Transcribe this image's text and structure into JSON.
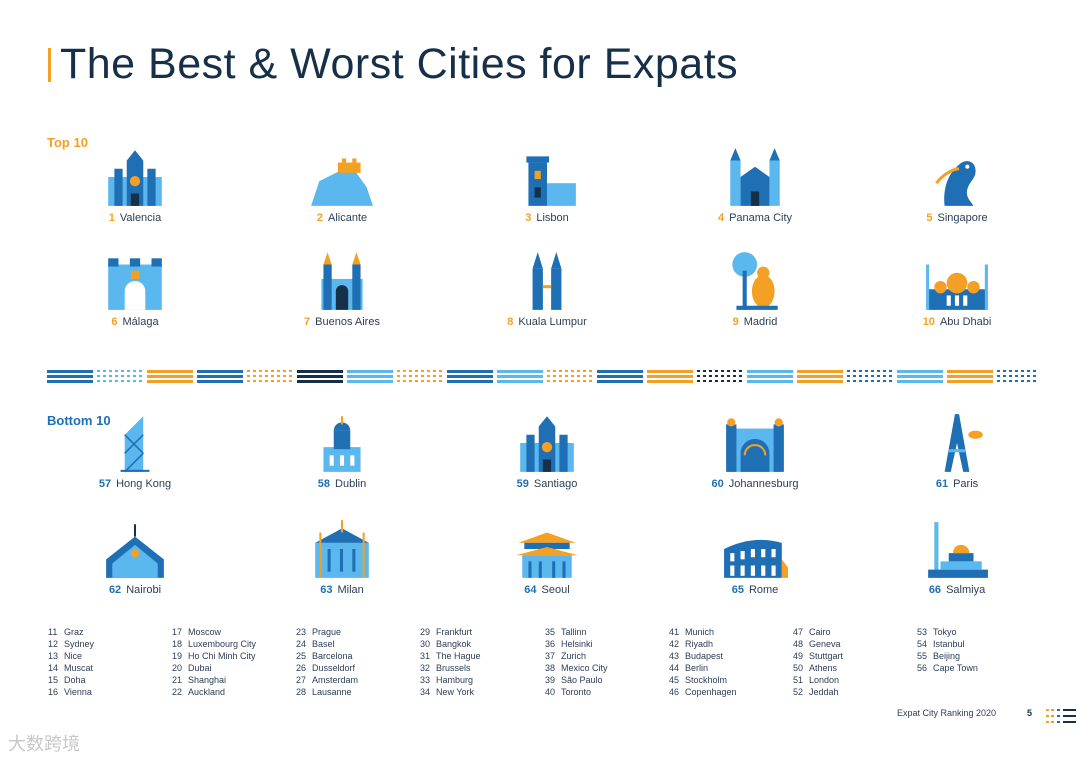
{
  "title": "The Best & Worst Cities for Expats",
  "top_label": "Top 10",
  "bottom_label": "Bottom 10",
  "top10": [
    {
      "rank": "1",
      "city": "Valencia",
      "icon": "cathedral-icon"
    },
    {
      "rank": "2",
      "city": "Alicante",
      "icon": "castle-on-hill-icon"
    },
    {
      "rank": "3",
      "city": "Lisbon",
      "icon": "belem-tower-icon"
    },
    {
      "rank": "4",
      "city": "Panama City",
      "icon": "church-towers-icon"
    },
    {
      "rank": "5",
      "city": "Singapore",
      "icon": "merlion-icon"
    },
    {
      "rank": "6",
      "city": "Málaga",
      "icon": "fortress-gate-icon"
    },
    {
      "rank": "7",
      "city": "Buenos Aires",
      "icon": "gothic-cathedral-icon"
    },
    {
      "rank": "8",
      "city": "Kuala Lumpur",
      "icon": "petronas-towers-icon"
    },
    {
      "rank": "9",
      "city": "Madrid",
      "icon": "bear-and-tree-icon"
    },
    {
      "rank": "10",
      "city": "Abu Dhabi",
      "icon": "grand-mosque-icon"
    }
  ],
  "bottom10": [
    {
      "rank": "57",
      "city": "Hong Kong",
      "icon": "skyscraper-icon"
    },
    {
      "rank": "58",
      "city": "Dublin",
      "icon": "domed-building-icon"
    },
    {
      "rank": "59",
      "city": "Santiago",
      "icon": "cathedral-icon"
    },
    {
      "rank": "60",
      "city": "Johannesburg",
      "icon": "arched-hall-icon"
    },
    {
      "rank": "61",
      "city": "Paris",
      "icon": "eiffel-tower-icon"
    },
    {
      "rank": "62",
      "city": "Nairobi",
      "icon": "conference-centre-icon"
    },
    {
      "rank": "63",
      "city": "Milan",
      "icon": "duomo-icon"
    },
    {
      "rank": "64",
      "city": "Seoul",
      "icon": "pagoda-gate-icon"
    },
    {
      "rank": "65",
      "city": "Rome",
      "icon": "colosseum-icon"
    },
    {
      "rank": "66",
      "city": "Salmiya",
      "icon": "mosque-minaret-icon"
    }
  ],
  "ranking_columns": [
    [
      [
        "11",
        "Graz"
      ],
      [
        "12",
        "Sydney"
      ],
      [
        "13",
        "Nice"
      ],
      [
        "14",
        "Muscat"
      ],
      [
        "15",
        "Doha"
      ],
      [
        "16",
        "Vienna"
      ]
    ],
    [
      [
        "17",
        "Moscow"
      ],
      [
        "18",
        "Luxembourg City"
      ],
      [
        "19",
        "Ho Chi Minh City"
      ],
      [
        "20",
        "Dubai"
      ],
      [
        "21",
        "Shanghai"
      ],
      [
        "22",
        "Auckland"
      ]
    ],
    [
      [
        "23",
        "Prague"
      ],
      [
        "24",
        "Basel"
      ],
      [
        "25",
        "Barcelona"
      ],
      [
        "26",
        "Dusseldorf"
      ],
      [
        "27",
        "Amsterdam"
      ],
      [
        "28",
        "Lausanne"
      ]
    ],
    [
      [
        "29",
        "Frankfurt"
      ],
      [
        "30",
        "Bangkok"
      ],
      [
        "31",
        "The Hague"
      ],
      [
        "32",
        "Brussels"
      ],
      [
        "33",
        "Hamburg"
      ],
      [
        "34",
        "New York"
      ]
    ],
    [
      [
        "35",
        "Tallinn"
      ],
      [
        "36",
        "Helsinki"
      ],
      [
        "37",
        "Zurich"
      ],
      [
        "38",
        "Mexico City"
      ],
      [
        "39",
        "São Paulo"
      ],
      [
        "40",
        "Toronto"
      ]
    ],
    [
      [
        "41",
        "Munich"
      ],
      [
        "42",
        "Riyadh"
      ],
      [
        "43",
        "Budapest"
      ],
      [
        "44",
        "Berlin"
      ],
      [
        "45",
        "Stockholm"
      ],
      [
        "46",
        "Copenhagen"
      ]
    ],
    [
      [
        "47",
        "Cairo"
      ],
      [
        "48",
        "Geneva"
      ],
      [
        "49",
        "Stuttgart"
      ],
      [
        "50",
        "Athens"
      ],
      [
        "51",
        "London"
      ],
      [
        "52",
        "Jeddah"
      ]
    ],
    [
      [
        "53",
        "Tokyo"
      ],
      [
        "54",
        "Istanbul"
      ],
      [
        "55",
        "Beijing"
      ],
      [
        "56",
        "Cape Town"
      ]
    ]
  ],
  "footer": {
    "text": "Expat City Ranking 2020",
    "page": "5"
  },
  "watermark": "大数跨境",
  "colors": {
    "orange": "#f4a024",
    "blue": "#1f6fb5",
    "light_blue": "#5bb8ee",
    "navy": "#16304a"
  }
}
